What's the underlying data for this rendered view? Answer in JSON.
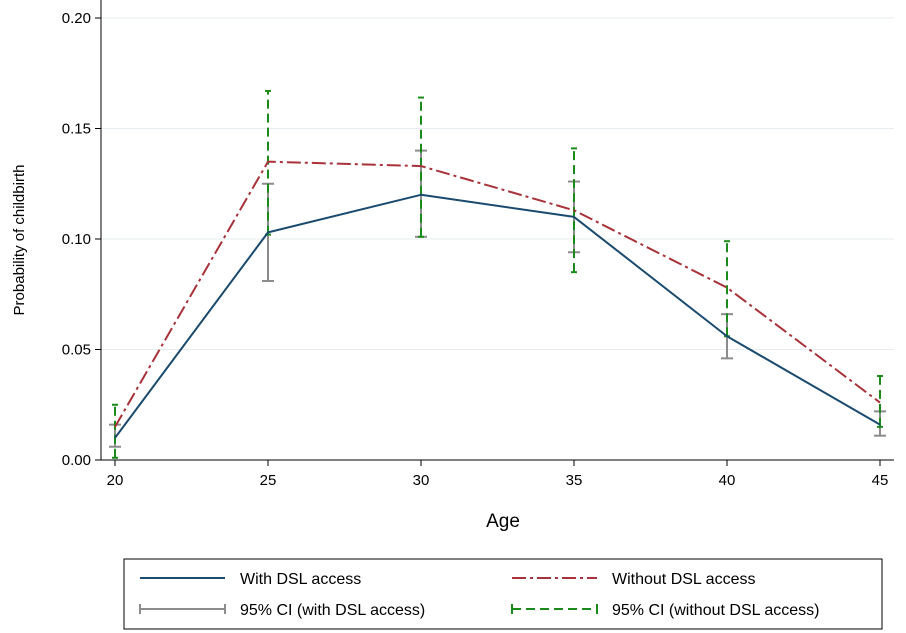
{
  "chart_data": {
    "type": "line",
    "xlabel": "Age",
    "ylabel": "Probability of childbirth",
    "x": [
      20,
      25,
      30,
      35,
      40,
      45
    ],
    "xticks": [
      20,
      25,
      30,
      35,
      40,
      45
    ],
    "yticks": [
      0.0,
      0.05,
      0.1,
      0.15,
      0.2
    ],
    "ytick_labels": [
      "0.00",
      "0.05",
      "0.10",
      "0.15",
      "0.20"
    ],
    "xlim": [
      20,
      45
    ],
    "ylim": [
      0,
      0.2
    ],
    "grid": true,
    "legend_position": "bottom",
    "series": [
      {
        "name": "With DSL access",
        "values": [
          0.01,
          0.103,
          0.12,
          0.11,
          0.056,
          0.016
        ],
        "color": "#1a4a6e",
        "style": "solid"
      },
      {
        "name": "Without DSL access",
        "values": [
          0.015,
          0.135,
          0.133,
          0.113,
          0.078,
          0.026
        ],
        "color": "#a8323a",
        "style": "dashdot"
      }
    ],
    "ci": [
      {
        "name": "95% CI (with DSL access)",
        "color": "#8c8c8c",
        "style": "solid",
        "lower": [
          0.006,
          0.081,
          0.101,
          0.094,
          0.046,
          0.011
        ],
        "upper": [
          0.016,
          0.125,
          0.14,
          0.126,
          0.066,
          0.022
        ]
      },
      {
        "name": "95% CI (without DSL access)",
        "color": "#1b8a1b",
        "style": "dashed",
        "lower": [
          0.001,
          0.102,
          0.101,
          0.085,
          0.056,
          0.015
        ],
        "upper": [
          0.025,
          0.167,
          0.164,
          0.141,
          0.099,
          0.038
        ]
      }
    ]
  }
}
